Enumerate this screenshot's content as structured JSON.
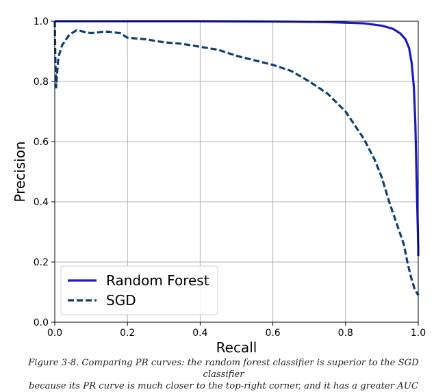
{
  "chart_data": {
    "type": "line",
    "xlabel": "Recall",
    "ylabel": "Precision",
    "xlim": [
      0.0,
      1.0
    ],
    "ylim": [
      0.0,
      1.0
    ],
    "xticks": [
      "0.0",
      "0.2",
      "0.4",
      "0.6",
      "0.8",
      "1.0"
    ],
    "yticks": [
      "0.0",
      "0.2",
      "0.4",
      "0.6",
      "0.8",
      "1.0"
    ],
    "grid": true,
    "legend_position": "bottom-left",
    "series": [
      {
        "name": "Random Forest",
        "color": "#1a1ac8",
        "style": "solid",
        "x": [
          0.0,
          0.2,
          0.4,
          0.6,
          0.75,
          0.85,
          0.9,
          0.93,
          0.95,
          0.965,
          0.975,
          0.982,
          0.988,
          0.992,
          0.995,
          0.998,
          1.0,
          1.0
        ],
        "y": [
          1.0,
          1.0,
          1.0,
          0.999,
          0.997,
          0.993,
          0.985,
          0.975,
          0.96,
          0.94,
          0.91,
          0.86,
          0.78,
          0.66,
          0.5,
          0.35,
          0.25,
          0.22
        ]
      },
      {
        "name": "SGD",
        "color": "#0c3f73",
        "style": "dashed",
        "x": [
          0.0,
          0.002,
          0.004,
          0.006,
          0.01,
          0.02,
          0.04,
          0.06,
          0.08,
          0.1,
          0.13,
          0.15,
          0.18,
          0.2,
          0.25,
          0.3,
          0.35,
          0.4,
          0.45,
          0.5,
          0.55,
          0.6,
          0.65,
          0.7,
          0.75,
          0.8,
          0.85,
          0.88,
          0.9,
          0.92,
          0.94,
          0.96,
          0.97,
          0.98,
          0.99,
          1.0
        ],
        "y": [
          1.0,
          0.85,
          0.78,
          0.82,
          0.88,
          0.92,
          0.955,
          0.97,
          0.965,
          0.96,
          0.965,
          0.965,
          0.96,
          0.945,
          0.94,
          0.93,
          0.925,
          0.915,
          0.905,
          0.885,
          0.87,
          0.855,
          0.835,
          0.8,
          0.76,
          0.7,
          0.61,
          0.54,
          0.48,
          0.4,
          0.33,
          0.26,
          0.2,
          0.15,
          0.11,
          0.09
        ]
      }
    ]
  },
  "caption": {
    "line1": "Figure 3-8. Comparing PR curves: the random forest classifier is superior to the SGD classifier",
    "line2": "because its PR curve is much closer to the top-right corner, and it has a greater AUC"
  }
}
